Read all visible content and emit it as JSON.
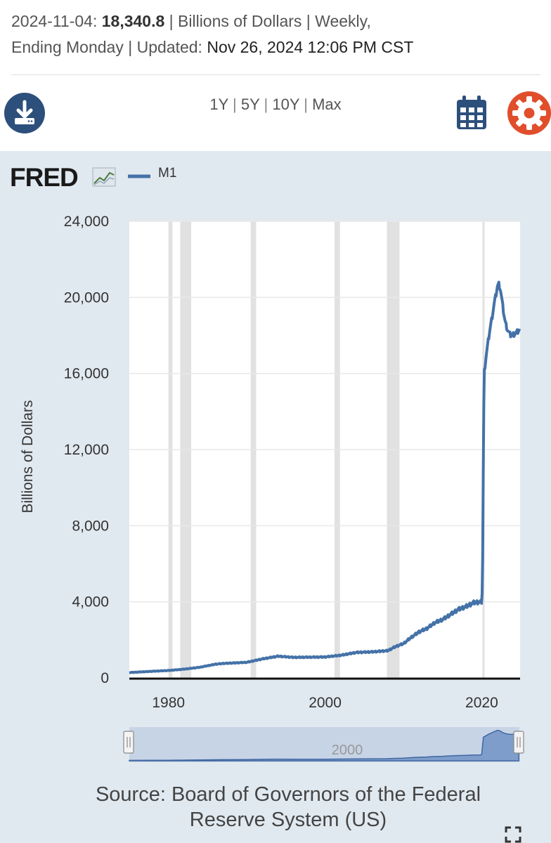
{
  "header": {
    "date": "2024-11-04:",
    "value": "18,340.8",
    "units_line": " | Billions of Dollars | Weekly,",
    "ending": "Ending Monday | Updated: ",
    "updated": "Nov 26, 2024 12:06 PM CST"
  },
  "toolbar": {
    "ranges": [
      "1Y",
      "5Y",
      "10Y",
      "Max"
    ],
    "sep": "|"
  },
  "logo": {
    "text": "FRED"
  },
  "colors": {
    "line": "#4472a8",
    "panel": "#e1e9f0",
    "recession": "#e1e1e1",
    "download": "#2d4f7b",
    "calendar": "#2d4f7b",
    "settings": "#e04e2c"
  },
  "icons": [
    "download-icon",
    "calendar-icon",
    "gear-icon",
    "expand-icon",
    "fred-chart-icon"
  ],
  "chart_data": {
    "type": "line",
    "title": "",
    "legend": [
      "M1"
    ],
    "xlabel": "",
    "ylabel": "Billions of Dollars",
    "xlim": [
      1975,
      2024.9
    ],
    "ylim": [
      0,
      24000
    ],
    "yticks": [
      "0",
      "4,000",
      "8,000",
      "12,000",
      "16,000",
      "20,000",
      "24,000"
    ],
    "ytick_values": [
      0,
      4000,
      8000,
      12000,
      16000,
      20000,
      24000
    ],
    "xticks": [
      "1980",
      "2000",
      "2020"
    ],
    "xtick_values": [
      1980,
      2000,
      2020
    ],
    "recessions": [
      [
        1980.0,
        1980.5
      ],
      [
        1981.5,
        1982.9
      ],
      [
        1990.5,
        1991.2
      ],
      [
        2001.2,
        2001.9
      ],
      [
        2007.9,
        2009.5
      ],
      [
        2020.1,
        2020.3
      ]
    ],
    "series": [
      {
        "name": "M1",
        "x": [
          1975,
          1978,
          1980,
          1982,
          1984,
          1986,
          1987,
          1988,
          1990,
          1992,
          1994,
          1996,
          1998,
          2000,
          2002,
          2004,
          2006,
          2008,
          2009,
          2010,
          2011,
          2012,
          2013,
          2014,
          2015,
          2016,
          2017,
          2018,
          2019,
          2020.0,
          2020.1,
          2020.2,
          2020.3,
          2020.5,
          2020.8,
          2021.0,
          2021.3,
          2021.6,
          2021.9,
          2022.0,
          2022.2,
          2022.4,
          2022.6,
          2022.8,
          2023.0,
          2023.3,
          2023.6,
          2023.9,
          2024.2,
          2024.5,
          2024.85
        ],
        "values": [
          280,
          350,
          390,
          460,
          560,
          720,
          760,
          780,
          820,
          1000,
          1140,
          1080,
          1090,
          1100,
          1190,
          1340,
          1370,
          1430,
          1650,
          1800,
          2130,
          2420,
          2600,
          2900,
          3070,
          3330,
          3600,
          3750,
          3960,
          4000,
          5000,
          11000,
          16000,
          16700,
          17600,
          18200,
          18900,
          19700,
          20300,
          20600,
          20700,
          20400,
          19800,
          19200,
          18700,
          18300,
          18050,
          18000,
          18100,
          18150,
          18340.8
        ]
      }
    ],
    "navigator": {
      "label": "2000"
    }
  },
  "source": {
    "line1": "Source: Board of Governors of the Federal",
    "line2": "Reserve System (US)"
  }
}
